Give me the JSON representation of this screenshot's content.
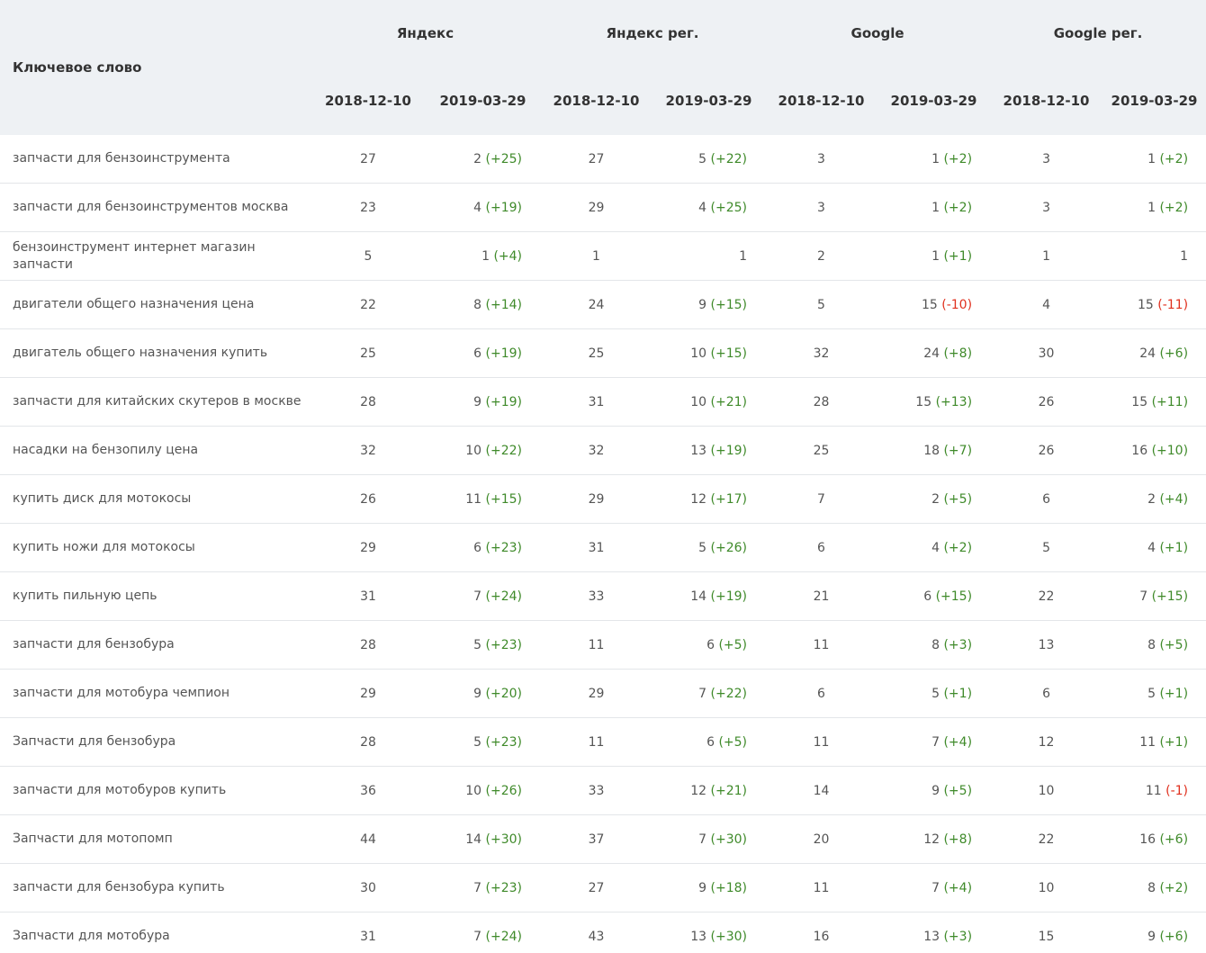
{
  "table": {
    "header": {
      "keyword_label": "Ключевое слово",
      "groups": [
        "Яндекс",
        "Яндекс рег.",
        "Google",
        "Google рег."
      ],
      "dates": [
        "2018-12-10",
        "2019-03-29",
        "2018-12-10",
        "2019-03-29",
        "2018-12-10",
        "2019-03-29",
        "2018-12-10",
        "2019-03-29"
      ]
    },
    "rows": [
      {
        "keyword": "запчасти для бензоинструмента",
        "cells": [
          [
            "27"
          ],
          [
            "2",
            "(+25)"
          ],
          [
            "27"
          ],
          [
            "5",
            "(+22)"
          ],
          [
            "3"
          ],
          [
            "1",
            "(+2)"
          ],
          [
            "3"
          ],
          [
            "1",
            "(+2)"
          ]
        ]
      },
      {
        "keyword": "запчасти для бензоинструментов москва",
        "cells": [
          [
            "23"
          ],
          [
            "4",
            "(+19)"
          ],
          [
            "29"
          ],
          [
            "4",
            "(+25)"
          ],
          [
            "3"
          ],
          [
            "1",
            "(+2)"
          ],
          [
            "3"
          ],
          [
            "1",
            "(+2)"
          ]
        ]
      },
      {
        "keyword": "бензоинструмент интернет магазин запчасти",
        "cells": [
          [
            "5"
          ],
          [
            "1",
            "(+4)"
          ],
          [
            "1"
          ],
          [
            "1"
          ],
          [
            "2"
          ],
          [
            "1",
            "(+1)"
          ],
          [
            "1"
          ],
          [
            "1"
          ]
        ]
      },
      {
        "keyword": "двигатели общего назначения цена",
        "cells": [
          [
            "22"
          ],
          [
            "8",
            "(+14)"
          ],
          [
            "24"
          ],
          [
            "9",
            "(+15)"
          ],
          [
            "5"
          ],
          [
            "15",
            "(-10)"
          ],
          [
            "4"
          ],
          [
            "15",
            "(-11)"
          ]
        ]
      },
      {
        "keyword": "двигатель общего назначения купить",
        "cells": [
          [
            "25"
          ],
          [
            "6",
            "(+19)"
          ],
          [
            "25"
          ],
          [
            "10",
            "(+15)"
          ],
          [
            "32"
          ],
          [
            "24",
            "(+8)"
          ],
          [
            "30"
          ],
          [
            "24",
            "(+6)"
          ]
        ]
      },
      {
        "keyword": "запчасти для китайских скутеров в москве",
        "cells": [
          [
            "28"
          ],
          [
            "9",
            "(+19)"
          ],
          [
            "31"
          ],
          [
            "10",
            "(+21)"
          ],
          [
            "28"
          ],
          [
            "15",
            "(+13)"
          ],
          [
            "26"
          ],
          [
            "15",
            "(+11)"
          ]
        ]
      },
      {
        "keyword": "насадки на бензопилу цена",
        "cells": [
          [
            "32"
          ],
          [
            "10",
            "(+22)"
          ],
          [
            "32"
          ],
          [
            "13",
            "(+19)"
          ],
          [
            "25"
          ],
          [
            "18",
            "(+7)"
          ],
          [
            "26"
          ],
          [
            "16",
            "(+10)"
          ]
        ]
      },
      {
        "keyword": "купить диск для мотокосы",
        "cells": [
          [
            "26"
          ],
          [
            "11",
            "(+15)"
          ],
          [
            "29"
          ],
          [
            "12",
            "(+17)"
          ],
          [
            "7"
          ],
          [
            "2",
            "(+5)"
          ],
          [
            "6"
          ],
          [
            "2",
            "(+4)"
          ]
        ]
      },
      {
        "keyword": "купить ножи для мотокосы",
        "cells": [
          [
            "29"
          ],
          [
            "6",
            "(+23)"
          ],
          [
            "31"
          ],
          [
            "5",
            "(+26)"
          ],
          [
            "6"
          ],
          [
            "4",
            "(+2)"
          ],
          [
            "5"
          ],
          [
            "4",
            "(+1)"
          ]
        ]
      },
      {
        "keyword": "купить пильную цепь",
        "cells": [
          [
            "31"
          ],
          [
            "7",
            "(+24)"
          ],
          [
            "33"
          ],
          [
            "14",
            "(+19)"
          ],
          [
            "21"
          ],
          [
            "6",
            "(+15)"
          ],
          [
            "22"
          ],
          [
            "7",
            "(+15)"
          ]
        ]
      },
      {
        "keyword": "запчасти для бензобура",
        "cells": [
          [
            "28"
          ],
          [
            "5",
            "(+23)"
          ],
          [
            "11"
          ],
          [
            "6",
            "(+5)"
          ],
          [
            "11"
          ],
          [
            "8",
            "(+3)"
          ],
          [
            "13"
          ],
          [
            "8",
            "(+5)"
          ]
        ]
      },
      {
        "keyword": "запчасти для мотобура чемпион",
        "cells": [
          [
            "29"
          ],
          [
            "9",
            "(+20)"
          ],
          [
            "29"
          ],
          [
            "7",
            "(+22)"
          ],
          [
            "6"
          ],
          [
            "5",
            "(+1)"
          ],
          [
            "6"
          ],
          [
            "5",
            "(+1)"
          ]
        ]
      },
      {
        "keyword": "Запчасти для бензобура",
        "cells": [
          [
            "28"
          ],
          [
            "5",
            "(+23)"
          ],
          [
            "11"
          ],
          [
            "6",
            "(+5)"
          ],
          [
            "11"
          ],
          [
            "7",
            "(+4)"
          ],
          [
            "12"
          ],
          [
            "11",
            "(+1)"
          ]
        ]
      },
      {
        "keyword": "запчасти для мотобуров купить",
        "cells": [
          [
            "36"
          ],
          [
            "10",
            "(+26)"
          ],
          [
            "33"
          ],
          [
            "12",
            "(+21)"
          ],
          [
            "14"
          ],
          [
            "9",
            "(+5)"
          ],
          [
            "10"
          ],
          [
            "11",
            "(-1)"
          ]
        ]
      },
      {
        "keyword": "Запчасти для мотопомп",
        "cells": [
          [
            "44"
          ],
          [
            "14",
            "(+30)"
          ],
          [
            "37"
          ],
          [
            "7",
            "(+30)"
          ],
          [
            "20"
          ],
          [
            "12",
            "(+8)"
          ],
          [
            "22"
          ],
          [
            "16",
            "(+6)"
          ]
        ]
      },
      {
        "keyword": "запчасти для бензобура купить",
        "cells": [
          [
            "30"
          ],
          [
            "7",
            "(+23)"
          ],
          [
            "27"
          ],
          [
            "9",
            "(+18)"
          ],
          [
            "11"
          ],
          [
            "7",
            "(+4)"
          ],
          [
            "10"
          ],
          [
            "8",
            "(+2)"
          ]
        ]
      },
      {
        "keyword": "Запчасти для мотобура",
        "cells": [
          [
            "31"
          ],
          [
            "7",
            "(+24)"
          ],
          [
            "43"
          ],
          [
            "13",
            "(+30)"
          ],
          [
            "16"
          ],
          [
            "13",
            "(+3)"
          ],
          [
            "15"
          ],
          [
            "9",
            "(+6)"
          ]
        ]
      }
    ]
  }
}
